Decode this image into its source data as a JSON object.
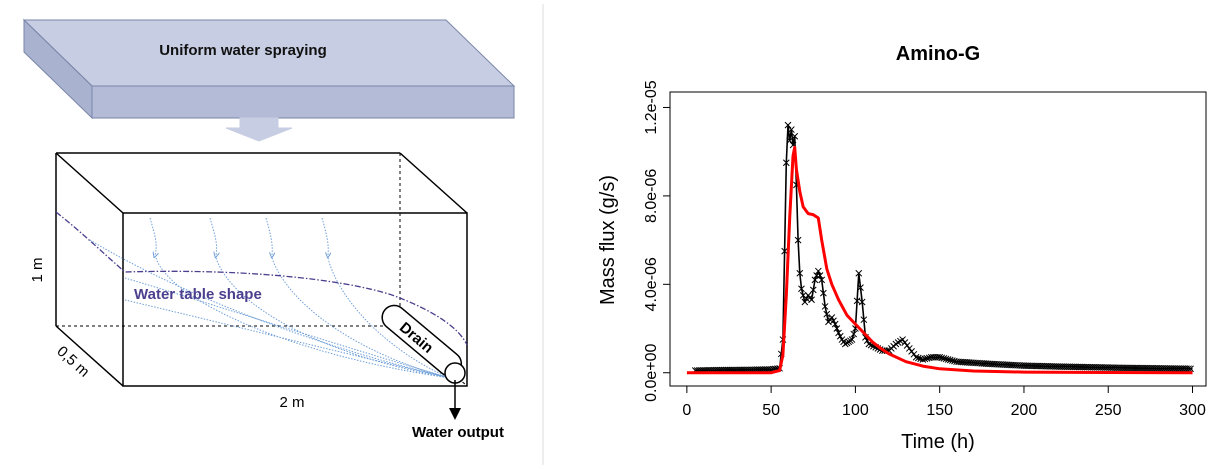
{
  "diagram": {
    "spray_label": "Uniform water spraying",
    "height_label": "1 m",
    "depth_label": "0,5 m",
    "length_label": "2 m",
    "water_table_label": "Water table shape",
    "drain_label": "Drain",
    "output_label": "Water output",
    "colors": {
      "water_table": "#4b3f8e",
      "flow": "#6f9fd8",
      "spray_fill": "#c7cde3",
      "spray_stroke": "#7a85a8"
    }
  },
  "chart_data": {
    "type": "line",
    "title": "Amino-G",
    "xlabel": "Time (h)",
    "ylabel": "Mass flux (g/s)",
    "xlim": [
      -10,
      308
    ],
    "ylim": [
      -6e-07,
      1.27e-05
    ],
    "x_ticks": [
      0,
      50,
      100,
      150,
      200,
      250,
      300
    ],
    "x_tick_labels": [
      "0",
      "50",
      "100",
      "150",
      "200",
      "250",
      "300"
    ],
    "y_ticks": [
      0,
      4e-06,
      8e-06,
      1.2e-05
    ],
    "y_tick_labels": [
      "0.0e+00",
      "4.0e-06",
      "8.0e-06",
      "1.2e-05"
    ],
    "grid": false,
    "series": [
      {
        "color": "#000000",
        "marker": "x",
        "points": [
          [
            5,
            1e-07
          ],
          [
            20,
            1.2e-07
          ],
          [
            35,
            1.3e-07
          ],
          [
            50,
            1.5e-07
          ],
          [
            55,
            2e-07
          ],
          [
            57,
            1.5e-06
          ],
          [
            58,
            5.5e-06
          ],
          [
            59,
            9.5e-06
          ],
          [
            60,
            1.12e-05
          ],
          [
            61,
            1.05e-05
          ],
          [
            62,
            1.1e-05
          ],
          [
            63,
            1.03e-05
          ],
          [
            64,
            1.07e-05
          ],
          [
            65,
            8.5e-06
          ],
          [
            66,
            6e-06
          ],
          [
            67,
            4.5e-06
          ],
          [
            68,
            3.8e-06
          ],
          [
            70,
            3.2e-06
          ],
          [
            72,
            3.5e-06
          ],
          [
            74,
            3.3e-06
          ],
          [
            76,
            4.2e-06
          ],
          [
            78,
            4.6e-06
          ],
          [
            80,
            4.2e-06
          ],
          [
            82,
            3e-06
          ],
          [
            84,
            2.3e-06
          ],
          [
            86,
            2.5e-06
          ],
          [
            88,
            2.2e-06
          ],
          [
            90,
            1.8e-06
          ],
          [
            92,
            1.5e-06
          ],
          [
            94,
            1.3e-06
          ],
          [
            96,
            1.4e-06
          ],
          [
            98,
            1.5e-06
          ],
          [
            100,
            2e-06
          ],
          [
            102,
            4.5e-06
          ],
          [
            104,
            3.2e-06
          ],
          [
            106,
            1.6e-06
          ],
          [
            108,
            1.3e-06
          ],
          [
            112,
            1.15e-06
          ],
          [
            116,
            1e-06
          ],
          [
            120,
            1e-06
          ],
          [
            124,
            1.3e-06
          ],
          [
            128,
            1.5e-06
          ],
          [
            132,
            1.1e-06
          ],
          [
            136,
            7e-07
          ],
          [
            140,
            6e-07
          ],
          [
            145,
            7e-07
          ],
          [
            150,
            7e-07
          ],
          [
            155,
            6e-07
          ],
          [
            160,
            5e-07
          ],
          [
            170,
            4.5e-07
          ],
          [
            180,
            4e-07
          ],
          [
            190,
            3.6e-07
          ],
          [
            200,
            3.2e-07
          ],
          [
            220,
            2.8e-07
          ],
          [
            240,
            2.5e-07
          ],
          [
            260,
            2.2e-07
          ],
          [
            280,
            2e-07
          ],
          [
            300,
            1.8e-07
          ]
        ]
      },
      {
        "color": "#ff0000",
        "marker": "none",
        "points": [
          [
            0,
            0
          ],
          [
            20,
            0
          ],
          [
            40,
            0
          ],
          [
            50,
            0
          ],
          [
            55,
            1e-07
          ],
          [
            57,
            8e-07
          ],
          [
            59,
            3.5e-06
          ],
          [
            61,
            7e-06
          ],
          [
            63,
            9.8e-06
          ],
          [
            64,
            1.02e-05
          ],
          [
            65,
            9.2e-06
          ],
          [
            67,
            8.2e-06
          ],
          [
            69,
            7.5e-06
          ],
          [
            72,
            7.2e-06
          ],
          [
            75,
            7.15e-06
          ],
          [
            78,
            7e-06
          ],
          [
            80,
            6e-06
          ],
          [
            83,
            4.7e-06
          ],
          [
            86,
            4e-06
          ],
          [
            90,
            3.3e-06
          ],
          [
            95,
            2.6e-06
          ],
          [
            100,
            2.2e-06
          ],
          [
            105,
            1.8e-06
          ],
          [
            110,
            1.4e-06
          ],
          [
            115,
            1.1e-06
          ],
          [
            120,
            8.5e-07
          ],
          [
            130,
            5e-07
          ],
          [
            140,
            3e-07
          ],
          [
            150,
            1.8e-07
          ],
          [
            170,
            8e-08
          ],
          [
            200,
            3e-08
          ],
          [
            250,
            1e-08
          ],
          [
            300,
            0
          ]
        ]
      }
    ]
  }
}
